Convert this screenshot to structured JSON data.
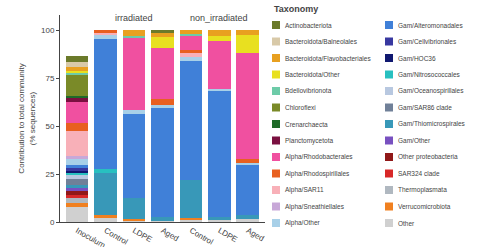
{
  "chart_data": {
    "type": "bar",
    "stacked": true,
    "categories": [
      "Inoculum",
      "Control",
      "LDPE",
      "Aged",
      "Control",
      "LDPE",
      "Aged"
    ],
    "ylabel": "Contribution to total community\n(% sequences)",
    "ylim": [
      0,
      108
    ],
    "yticks": [
      0,
      25,
      50,
      75,
      100
    ],
    "grid": false,
    "legend": "right",
    "legend_title": "Taxonomy",
    "annotations": [
      {
        "text": "irradiated",
        "x": 2,
        "y": 103
      },
      {
        "text": "non_irradiated",
        "x": 5,
        "y": 103
      }
    ],
    "series": [
      {
        "name": "Other",
        "color": "#D0D0D0",
        "values": [
          8,
          2.5,
          1,
          0.5,
          1.5,
          1,
          1.5
        ]
      },
      {
        "name": "Verrucomicrobiota",
        "color": "#F08020",
        "values": [
          2,
          1,
          0.5,
          null,
          0.5,
          null,
          null
        ]
      },
      {
        "name": "Thermoplasmata",
        "color": "#B0B8C0",
        "values": [
          2.5,
          null,
          null,
          null,
          null,
          null,
          null
        ]
      },
      {
        "name": "SAR324 clade",
        "color": "#D82828",
        "values": [
          1.5,
          null,
          null,
          null,
          null,
          null,
          null
        ]
      },
      {
        "name": "Other proteobacteria",
        "color": "#901818",
        "values": [
          2,
          null,
          null,
          null,
          null,
          null,
          null
        ]
      },
      {
        "name": "Gam/Other",
        "color": "#7850C0",
        "values": [
          1.5,
          null,
          null,
          null,
          null,
          null,
          null
        ]
      },
      {
        "name": "Gam/Thiomicrospirales",
        "color": "#3898B8",
        "values": [
          2,
          22,
          11,
          2,
          20,
          1.5,
          2
        ]
      },
      {
        "name": "Gam/SAR86 clade",
        "color": "#708098",
        "values": [
          3,
          null,
          null,
          null,
          null,
          null,
          null
        ]
      },
      {
        "name": "Gam/Oceanospirillales",
        "color": "#B8C8E0",
        "values": [
          2.5,
          null,
          null,
          null,
          null,
          null,
          null
        ]
      },
      {
        "name": "Gam/Nitrosococcales",
        "color": "#28C0C0",
        "values": [
          1,
          2,
          null,
          null,
          null,
          null,
          null
        ]
      },
      {
        "name": "Gam/HOC36",
        "color": "#101870",
        "values": [
          1,
          null,
          null,
          null,
          null,
          null,
          null
        ]
      },
      {
        "name": "Gam/Cellvibrionales",
        "color": "#3838A0",
        "values": [
          1,
          null,
          null,
          null,
          null,
          null,
          null
        ]
      },
      {
        "name": "Gam/Alteromonadales",
        "color": "#4080D8",
        "values": [
          2,
          68,
          44,
          57,
          62,
          66,
          26
        ]
      },
      {
        "name": "Alpha/Other",
        "color": "#A8D0E8",
        "values": [
          3,
          2,
          2,
          1.5,
          2,
          1,
          1.5
        ]
      },
      {
        "name": "Alpha/Sneathiellales",
        "color": "#C8A8D8",
        "values": [
          1.5,
          null,
          null,
          null,
          null,
          null,
          null
        ]
      },
      {
        "name": "Alpha/SAR11",
        "color": "#F8B0B8",
        "values": [
          13,
          1.5,
          null,
          null,
          2,
          null,
          null
        ]
      },
      {
        "name": "Alpha/Rhodospirillales",
        "color": "#E86020",
        "values": [
          4,
          1,
          null,
          3,
          1.5,
          null,
          2
        ]
      },
      {
        "name": "Alpha/Rhodobacterales",
        "color": "#F050A0",
        "values": [
          11,
          null,
          38,
          27,
          8,
          25,
          55
        ]
      },
      {
        "name": "Planctomycetota",
        "color": "#7A1040",
        "values": [
          2,
          null,
          null,
          null,
          null,
          null,
          null
        ]
      },
      {
        "name": "Crenarchaecta",
        "color": "#1E6B28",
        "values": [
          1.5,
          null,
          null,
          null,
          null,
          null,
          null
        ]
      },
      {
        "name": "Chloroflexi",
        "color": "#7A8A28",
        "values": [
          11,
          null,
          null,
          null,
          null,
          null,
          null
        ]
      },
      {
        "name": "Bdellovibrionota",
        "color": "#6DCBA8",
        "values": [
          1,
          null,
          0.5,
          null,
          0.5,
          null,
          null
        ]
      },
      {
        "name": "Bacteroidota/Other",
        "color": "#E8E020",
        "values": [
          1,
          null,
          null,
          5.5,
          null,
          2.5,
          9.5
        ]
      },
      {
        "name": "Bacteroidota/Flavobacteriales",
        "color": "#E8A020",
        "values": [
          2,
          null,
          3,
          2.5,
          2,
          3,
          2.5
        ]
      },
      {
        "name": "Bacteroidota/Balneolales",
        "color": "#D8C9A8",
        "values": [
          2.5,
          null,
          null,
          null,
          null,
          null,
          null
        ]
      },
      {
        "name": "Actinobacteriota",
        "color": "#6B7A2A",
        "values": [
          3,
          null,
          null,
          1,
          null,
          null,
          null
        ]
      }
    ]
  }
}
